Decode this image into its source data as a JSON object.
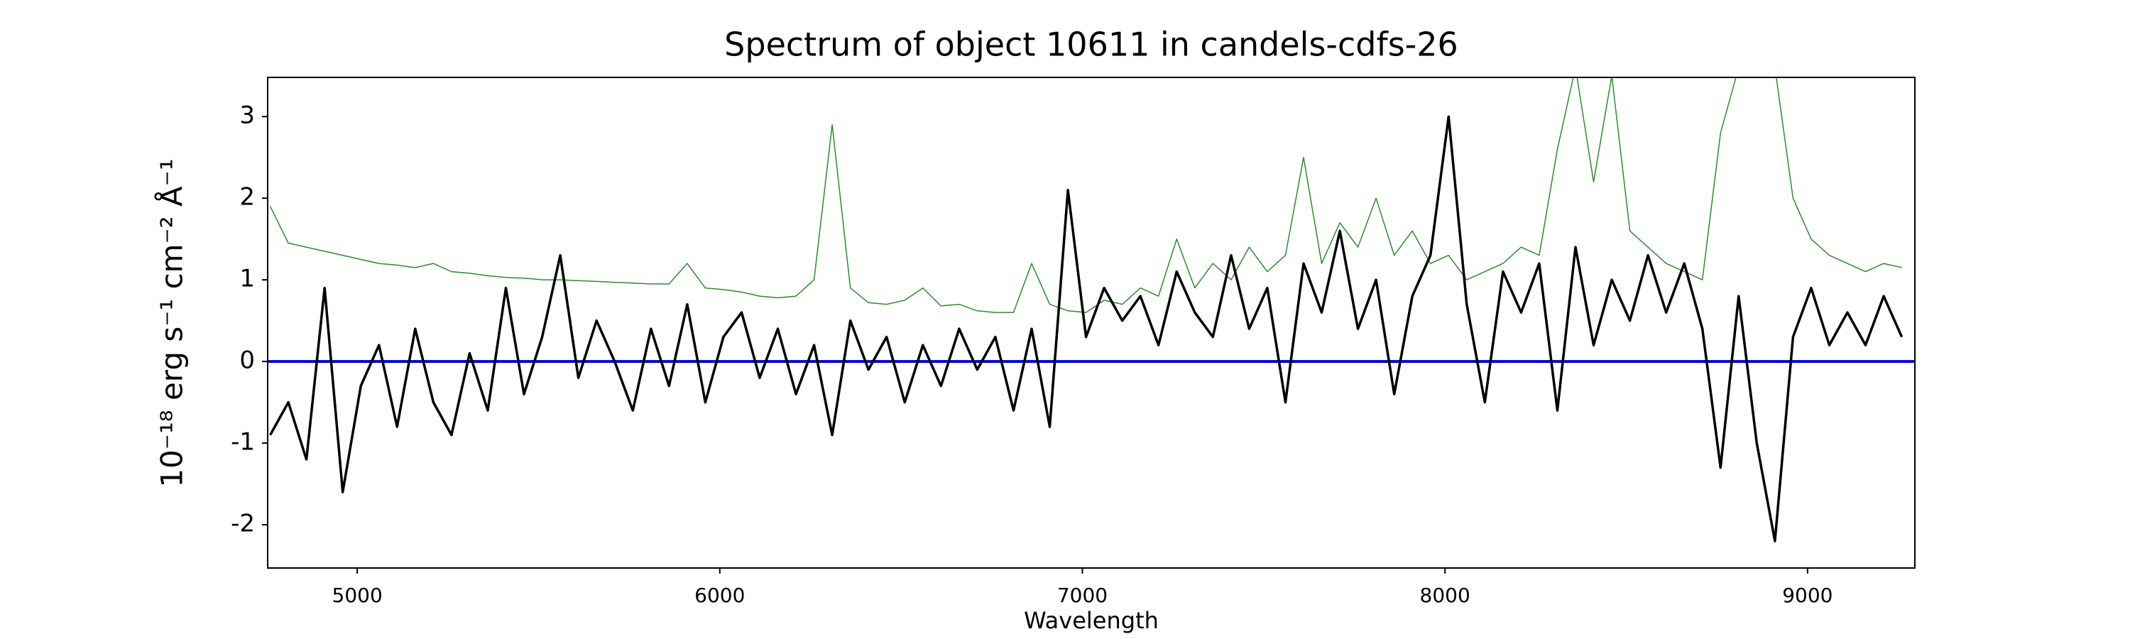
{
  "chart_data": {
    "type": "line",
    "title": "Spectrum of object 10611 in candels-cdfs-26",
    "x_label": "Wavelength",
    "y_label": "10⁻¹⁸ erg s⁻¹ cm⁻² Å⁻¹",
    "x": [
      4760,
      4810,
      4860,
      4910,
      4960,
      5010,
      5060,
      5110,
      5160,
      5210,
      5260,
      5310,
      5360,
      5410,
      5460,
      5510,
      5560,
      5610,
      5660,
      5710,
      5760,
      5810,
      5860,
      5910,
      5960,
      6010,
      6060,
      6110,
      6160,
      6210,
      6260,
      6310,
      6360,
      6410,
      6460,
      6510,
      6560,
      6610,
      6660,
      6710,
      6760,
      6810,
      6860,
      6910,
      6960,
      7010,
      7060,
      7110,
      7160,
      7210,
      7260,
      7310,
      7360,
      7410,
      7460,
      7510,
      7560,
      7610,
      7660,
      7710,
      7760,
      7810,
      7860,
      7910,
      7960,
      8010,
      8060,
      8110,
      8160,
      8210,
      8260,
      8310,
      8360,
      8410,
      8460,
      8510,
      8560,
      8610,
      8660,
      8710,
      8760,
      8810,
      8860,
      8910,
      8960,
      9010,
      9060,
      9110,
      9160,
      9210,
      9260
    ],
    "series": [
      {
        "color": "#2e8b2e",
        "width": 1.5,
        "values": [
          1.9,
          1.45,
          1.4,
          1.35,
          1.3,
          1.25,
          1.2,
          1.18,
          1.15,
          1.2,
          1.1,
          1.08,
          1.05,
          1.03,
          1.02,
          1.0,
          1.0,
          0.99,
          0.98,
          0.97,
          0.96,
          0.95,
          0.95,
          1.2,
          0.9,
          0.88,
          0.85,
          0.8,
          0.78,
          0.8,
          1.0,
          2.9,
          0.9,
          0.72,
          0.7,
          0.75,
          0.9,
          0.68,
          0.7,
          0.62,
          0.6,
          0.6,
          1.2,
          0.7,
          0.62,
          0.6,
          0.75,
          0.7,
          0.9,
          0.8,
          1.5,
          0.9,
          1.2,
          1.0,
          1.4,
          1.1,
          1.3,
          2.5,
          1.2,
          1.7,
          1.4,
          2.0,
          1.3,
          1.6,
          1.2,
          1.3,
          1.0,
          1.1,
          1.2,
          1.4,
          1.3,
          2.6,
          3.6,
          2.2,
          3.5,
          1.6,
          1.4,
          1.2,
          1.1,
          1.0,
          2.8,
          3.6,
          3.5,
          3.6,
          2.0,
          1.5,
          1.3,
          1.2,
          1.1,
          1.2,
          1.15
        ]
      },
      {
        "color": "#000000",
        "width": 3.5,
        "values": [
          -0.9,
          -0.5,
          -1.2,
          0.9,
          -1.6,
          -0.3,
          0.2,
          -0.8,
          0.4,
          -0.5,
          -0.9,
          0.1,
          -0.6,
          0.9,
          -0.4,
          0.3,
          1.3,
          -0.2,
          0.5,
          0.0,
          -0.6,
          0.4,
          -0.3,
          0.7,
          -0.5,
          0.3,
          0.6,
          -0.2,
          0.4,
          -0.4,
          0.2,
          -0.9,
          0.5,
          -0.1,
          0.3,
          -0.5,
          0.2,
          -0.3,
          0.4,
          -0.1,
          0.3,
          -0.6,
          0.4,
          -0.8,
          2.1,
          0.3,
          0.9,
          0.5,
          0.8,
          0.2,
          1.1,
          0.6,
          0.3,
          1.3,
          0.4,
          0.9,
          -0.5,
          1.2,
          0.6,
          1.6,
          0.4,
          1.0,
          -0.4,
          0.8,
          1.3,
          3.0,
          0.7,
          -0.5,
          1.1,
          0.6,
          1.2,
          -0.6,
          1.4,
          0.2,
          1.0,
          0.5,
          1.3,
          0.6,
          1.2,
          0.4,
          -1.3,
          0.8,
          -1.0,
          -2.2,
          0.3,
          0.9,
          0.2,
          0.6,
          0.2,
          0.8,
          0.3
        ]
      }
    ],
    "reference_line": 0,
    "reference_color": "#0000cc",
    "xlim": [
      4753,
      9296
    ],
    "xticks": [
      5000,
      6000,
      7000,
      8000,
      9000
    ],
    "ylim": [
      -2.53,
      3.48
    ],
    "yticks": [
      -2,
      -1,
      0,
      1,
      2,
      3
    ]
  }
}
